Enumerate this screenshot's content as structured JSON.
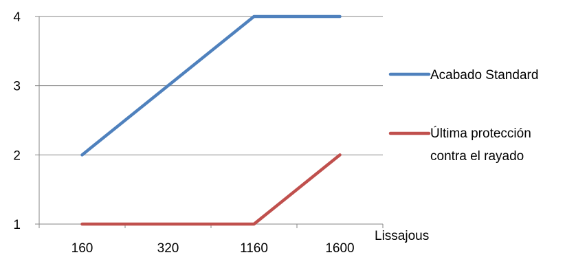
{
  "chart_data": {
    "type": "line",
    "categories": [
      "160",
      "320",
      "1160",
      "1600"
    ],
    "xlabel": "Lissajous",
    "ylabel": "",
    "ylim": [
      1,
      4
    ],
    "yticks": [
      "1",
      "2",
      "3",
      "4"
    ],
    "grid": "horizontal",
    "legend_position": "right",
    "series": [
      {
        "name": "Acabado Standard",
        "values": [
          2,
          3,
          4,
          4
        ],
        "color": "#4F81BD"
      },
      {
        "name": "Última protección contra el rayado",
        "name_lines": [
          "Última protección",
          "contra el rayado"
        ],
        "values": [
          1,
          1,
          1,
          2
        ],
        "color": "#C0504D"
      }
    ]
  }
}
